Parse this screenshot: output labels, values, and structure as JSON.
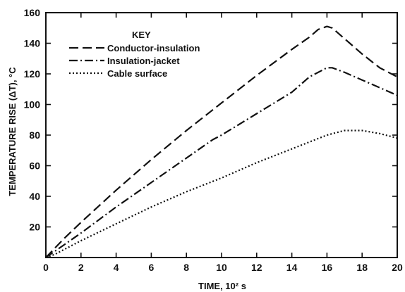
{
  "chart_data": {
    "type": "line",
    "title": "",
    "xlabel": "TIME, 10² s",
    "ylabel": "TEMPERATURE RISE (ΔT), °C",
    "xlim": [
      0,
      20
    ],
    "ylim": [
      0,
      160
    ],
    "xticks": [
      "0",
      "2",
      "4",
      "6",
      "8",
      "10",
      "12",
      "14",
      "16",
      "18",
      "20"
    ],
    "yticks": [
      "20",
      "40",
      "60",
      "80",
      "100",
      "120",
      "140",
      "160"
    ],
    "grid": false,
    "legend": {
      "title": "KEY",
      "position": "top-left"
    },
    "series": [
      {
        "name": "Conductor-insulation",
        "style": "dashed",
        "x": [
          0,
          1,
          2,
          4,
          6,
          8,
          10,
          12,
          14,
          15,
          15.5,
          16,
          16.3,
          17,
          18,
          19,
          20
        ],
        "y": [
          0,
          12,
          23,
          44,
          64,
          83,
          101,
          119,
          136,
          144,
          149,
          151,
          150,
          143,
          133,
          124,
          118
        ]
      },
      {
        "name": "Insulation-jacket",
        "style": "dashdot",
        "x": [
          0,
          1,
          2,
          4,
          6,
          8,
          9.5,
          10,
          12,
          14,
          15,
          16,
          16.3,
          17,
          18,
          19,
          20
        ],
        "y": [
          0,
          8,
          16,
          33,
          49,
          65,
          77,
          80,
          94,
          108,
          118,
          124,
          124,
          121,
          116,
          111,
          106
        ]
      },
      {
        "name": "Cable surface",
        "style": "dotted",
        "x": [
          0,
          0.5,
          1,
          2,
          4,
          6,
          8,
          10,
          12,
          14,
          16,
          17,
          17.5,
          18,
          19,
          20
        ],
        "y": [
          0,
          2,
          5,
          11,
          22,
          33,
          43,
          52,
          62,
          71,
          80,
          83,
          83,
          83,
          81,
          78
        ]
      }
    ]
  }
}
